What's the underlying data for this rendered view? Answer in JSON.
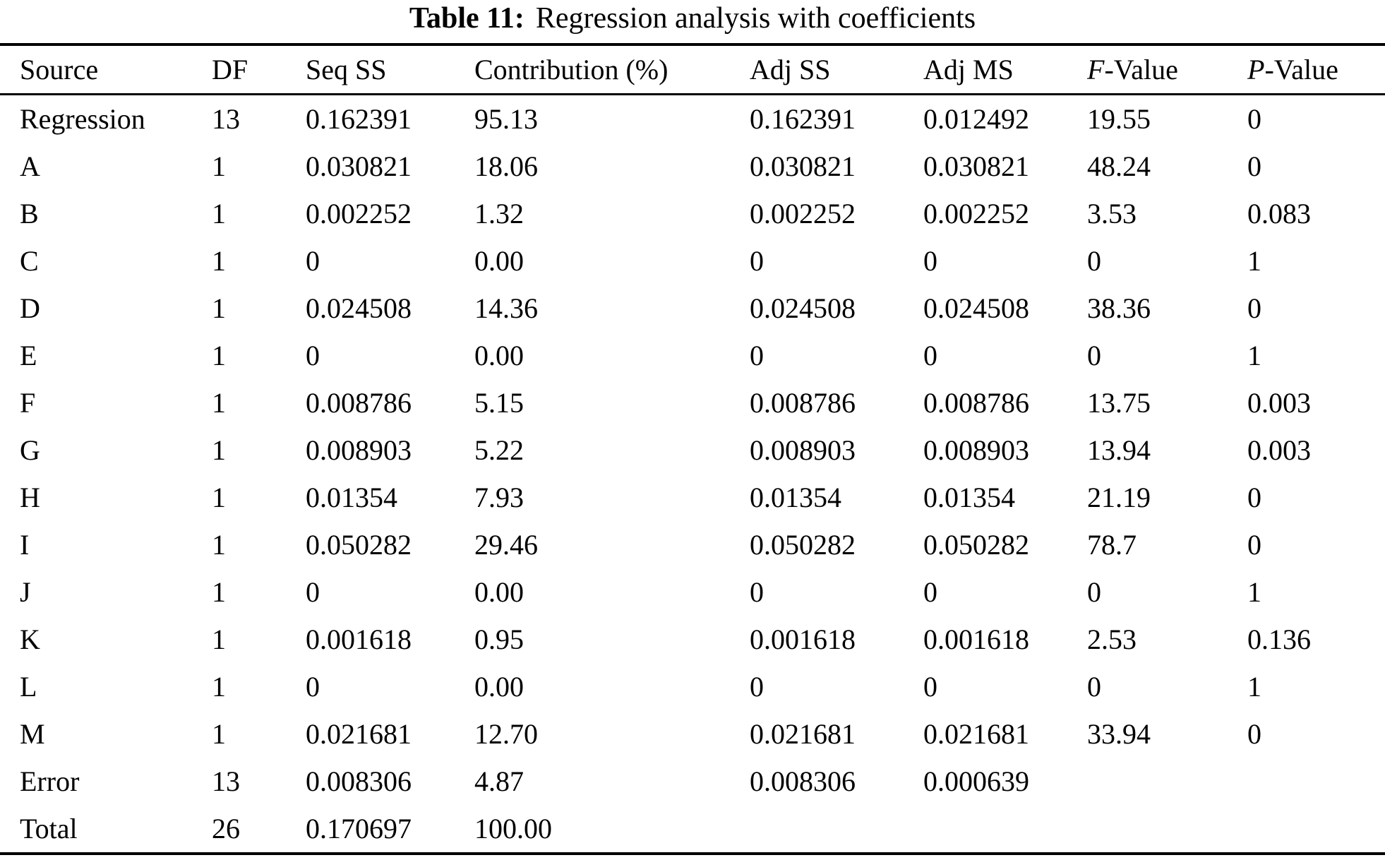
{
  "title": {
    "label_bold": "Table 11:",
    "label_rest": "Regression analysis with coefficients"
  },
  "table": {
    "columns": [
      {
        "label": "Source"
      },
      {
        "label": "DF"
      },
      {
        "label": "Seq SS"
      },
      {
        "label": "Contribution (%)"
      },
      {
        "label": "Adj SS"
      },
      {
        "label": "Adj MS"
      },
      {
        "italic": "F",
        "label": "-Value"
      },
      {
        "italic": "P",
        "label": "-Value"
      }
    ],
    "rows": [
      [
        "Regression",
        "13",
        "0.162391",
        "95.13",
        "0.162391",
        "0.012492",
        "19.55",
        "0"
      ],
      [
        "A",
        "1",
        "0.030821",
        "18.06",
        "0.030821",
        "0.030821",
        "48.24",
        "0"
      ],
      [
        "B",
        "1",
        "0.002252",
        "1.32",
        "0.002252",
        "0.002252",
        "3.53",
        "0.083"
      ],
      [
        "C",
        "1",
        "0",
        "0.00",
        "0",
        "0",
        "0",
        "1"
      ],
      [
        "D",
        "1",
        "0.024508",
        "14.36",
        "0.024508",
        "0.024508",
        "38.36",
        "0"
      ],
      [
        "E",
        "1",
        "0",
        "0.00",
        "0",
        "0",
        "0",
        "1"
      ],
      [
        "F",
        "1",
        "0.008786",
        "5.15",
        "0.008786",
        "0.008786",
        "13.75",
        "0.003"
      ],
      [
        "G",
        "1",
        "0.008903",
        "5.22",
        "0.008903",
        "0.008903",
        "13.94",
        "0.003"
      ],
      [
        "H",
        "1",
        "0.01354",
        "7.93",
        "0.01354",
        "0.01354",
        "21.19",
        "0"
      ],
      [
        "I",
        "1",
        "0.050282",
        "29.46",
        "0.050282",
        "0.050282",
        "78.7",
        "0"
      ],
      [
        "J",
        "1",
        "0",
        "0.00",
        "0",
        "0",
        "0",
        "1"
      ],
      [
        "K",
        "1",
        "0.001618",
        "0.95",
        "0.001618",
        "0.001618",
        "2.53",
        "0.136"
      ],
      [
        "L",
        "1",
        "0",
        "0.00",
        "0",
        "0",
        "0",
        "1"
      ],
      [
        "M",
        "1",
        "0.021681",
        "12.70",
        "0.021681",
        "0.021681",
        "33.94",
        "0"
      ],
      [
        "Error",
        "13",
        "0.008306",
        "4.87",
        "0.008306",
        "0.000639",
        "",
        ""
      ],
      [
        "Total",
        "26",
        "0.170697",
        "100.00",
        "",
        "",
        "",
        ""
      ]
    ]
  },
  "colors": {
    "background": "#ffffff",
    "text": "#000000",
    "rule": "#000000"
  }
}
